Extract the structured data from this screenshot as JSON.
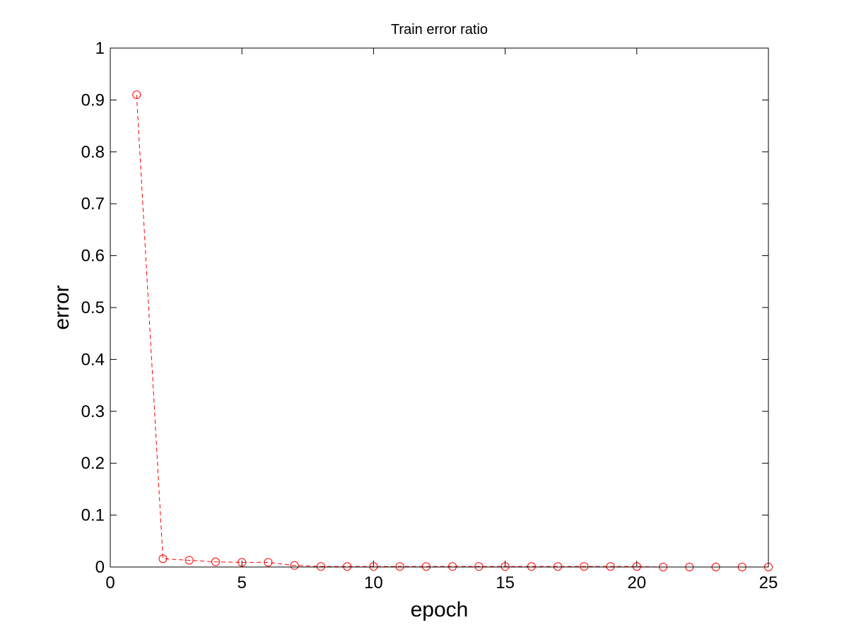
{
  "chart_data": {
    "type": "line",
    "title": "Train error ratio",
    "xlabel": "epoch",
    "ylabel": "error",
    "xlim": [
      0,
      25
    ],
    "ylim": [
      0,
      1
    ],
    "xticks": [
      "0",
      "5",
      "10",
      "15",
      "20",
      "25"
    ],
    "yticks": [
      "0",
      "0.1",
      "0.2",
      "0.3",
      "0.4",
      "0.5",
      "0.6",
      "0.7",
      "0.8",
      "0.9",
      "1"
    ],
    "grid": false,
    "line_style": "dashed",
    "marker": "circle",
    "color": "#ff0000",
    "series": [
      {
        "x": [
          1,
          2,
          3,
          4,
          5,
          6,
          7,
          8,
          9,
          10,
          11,
          12,
          13,
          14,
          15,
          16,
          17,
          18,
          19,
          20,
          21,
          22,
          23,
          24,
          25
        ],
        "values": [
          0.91,
          0.016,
          0.013,
          0.01,
          0.009,
          0.009,
          0.003,
          0.001,
          0.001,
          0.001,
          0.001,
          0.001,
          0.001,
          0.001,
          0.001,
          0.001,
          0.001,
          0.001,
          0.001,
          0.001,
          0.0,
          0.0,
          0.0,
          0.0,
          0.0
        ]
      }
    ]
  }
}
